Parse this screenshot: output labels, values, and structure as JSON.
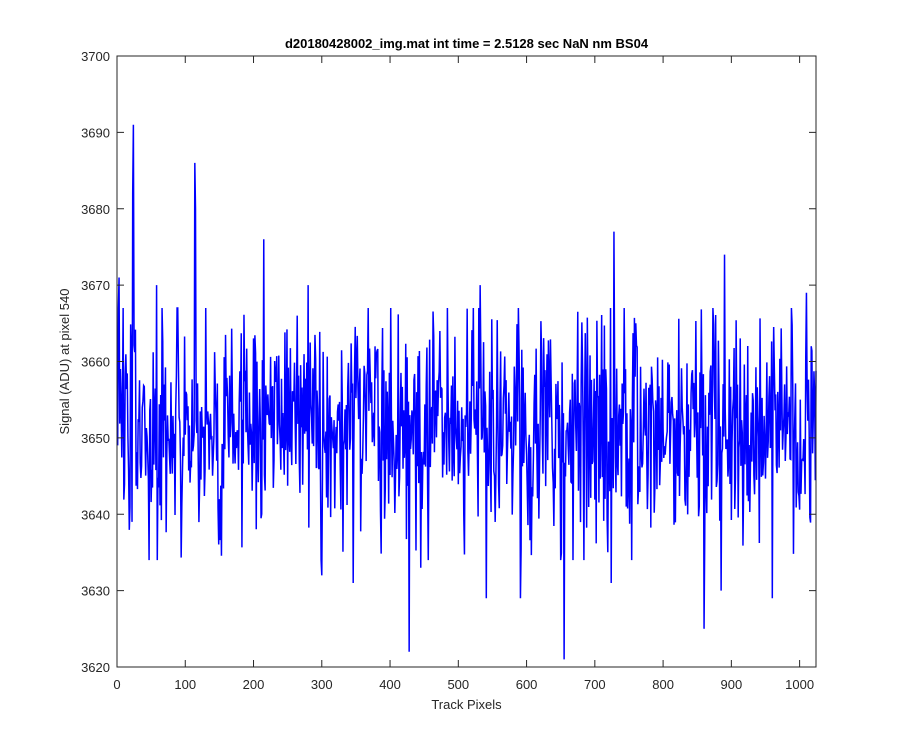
{
  "chart_data": {
    "type": "line",
    "title": "d20180428002_img.mat int time = 2.5128 sec  NaN nm BS04",
    "xlabel": "Track Pixels",
    "ylabel": "Signal (ADU) at pixel 540",
    "xlim": [
      0,
      1024
    ],
    "ylim": [
      3620,
      3700
    ],
    "xticks": [
      0,
      100,
      200,
      300,
      400,
      500,
      600,
      700,
      800,
      900,
      1000
    ],
    "yticks": [
      3620,
      3630,
      3640,
      3650,
      3660,
      3670,
      3680,
      3690,
      3700
    ],
    "grid": false,
    "line_color": "#0000ff",
    "x_range": [
      1,
      1024
    ],
    "baseline": 3651,
    "noise_amplitude": 7.5,
    "peaks": [
      {
        "x": 3,
        "y": 3671
      },
      {
        "x": 23,
        "y": 3682
      },
      {
        "x": 24,
        "y": 3691
      },
      {
        "x": 58,
        "y": 3670
      },
      {
        "x": 88,
        "y": 3667
      },
      {
        "x": 114,
        "y": 3686
      },
      {
        "x": 115,
        "y": 3680
      },
      {
        "x": 215,
        "y": 3676
      },
      {
        "x": 280,
        "y": 3670
      },
      {
        "x": 532,
        "y": 3670
      },
      {
        "x": 728,
        "y": 3677
      },
      {
        "x": 890,
        "y": 3674
      },
      {
        "x": 1010,
        "y": 3669
      }
    ],
    "troughs": [
      {
        "x": 22,
        "y": 3639
      },
      {
        "x": 300,
        "y": 3632
      },
      {
        "x": 346,
        "y": 3631
      },
      {
        "x": 428,
        "y": 3622
      },
      {
        "x": 445,
        "y": 3633
      },
      {
        "x": 541,
        "y": 3629
      },
      {
        "x": 591,
        "y": 3629
      },
      {
        "x": 655,
        "y": 3621
      },
      {
        "x": 724,
        "y": 3631
      },
      {
        "x": 860,
        "y": 3625
      },
      {
        "x": 885,
        "y": 3630
      },
      {
        "x": 960,
        "y": 3629
      }
    ]
  }
}
